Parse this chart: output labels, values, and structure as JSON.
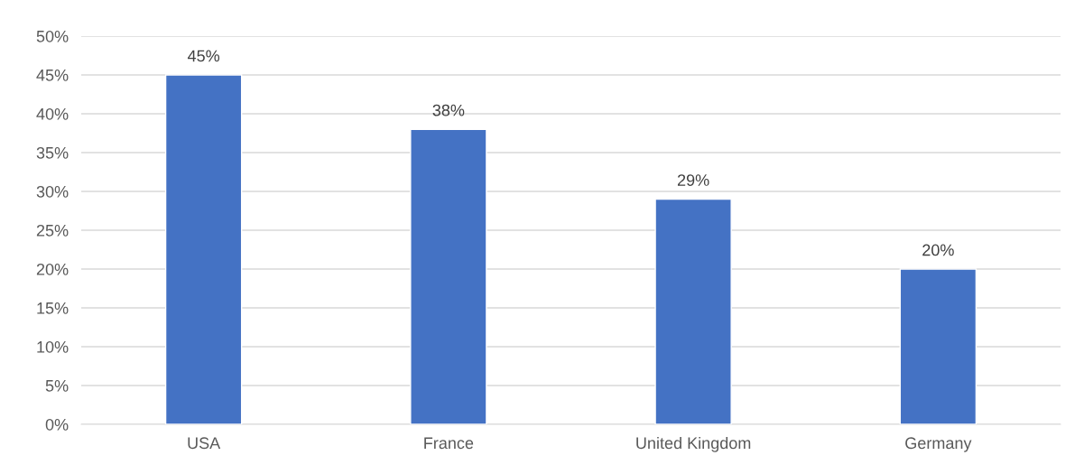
{
  "chart_data": {
    "type": "bar",
    "categories": [
      "USA",
      "France",
      "United Kingdom",
      "Germany"
    ],
    "values": [
      45,
      38,
      29,
      20
    ],
    "color": "#4472c4",
    "value_labels": [
      "45%",
      "38%",
      "29%",
      "20%"
    ],
    "ylim": [
      0,
      50
    ],
    "yticks": [
      {
        "value": 0,
        "label": "0%"
      },
      {
        "value": 5,
        "label": "5%"
      },
      {
        "value": 10,
        "label": "10%"
      },
      {
        "value": 15,
        "label": "15%"
      },
      {
        "value": 20,
        "label": "20%"
      },
      {
        "value": 25,
        "label": "25%"
      },
      {
        "value": 30,
        "label": "30%"
      },
      {
        "value": 35,
        "label": "35%"
      },
      {
        "value": 40,
        "label": "40%"
      },
      {
        "value": 45,
        "label": "45%"
      },
      {
        "value": 50,
        "label": "50%"
      }
    ],
    "grid": "y"
  }
}
